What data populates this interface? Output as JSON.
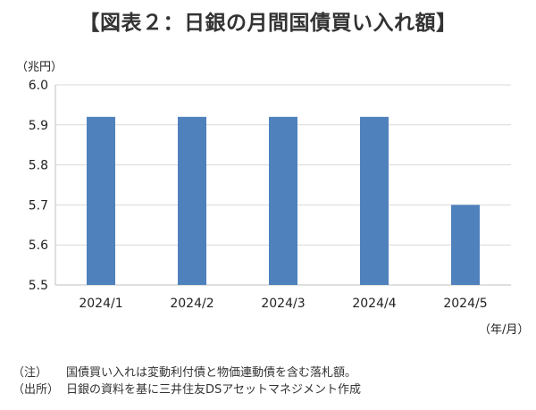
{
  "title": "【図表２：日銀の月間国債買い入れ額】",
  "chart_data": {
    "type": "bar",
    "title": "【図表２：日銀の月間国債買い入れ額】",
    "ylabel": "（兆円）",
    "xlabel": "（年/月）",
    "categories": [
      "2024/1",
      "2024/2",
      "2024/3",
      "2024/4",
      "2024/5"
    ],
    "values": [
      5.92,
      5.92,
      5.92,
      5.92,
      5.7
    ],
    "ylim": [
      5.5,
      6.0
    ],
    "yticks": [
      "5.5",
      "5.6",
      "5.7",
      "5.8",
      "5.9",
      "6.0"
    ],
    "grid": true,
    "legend": "none",
    "bar_color": "#4f81bd"
  },
  "notes": [
    {
      "label": "（注）",
      "text": "国債買い入れは変動利付債と物価連動債を含む落札額。"
    },
    {
      "label": "（出所）",
      "text": "日銀の資料を基に三井住友DSアセットマネジメント作成"
    }
  ]
}
